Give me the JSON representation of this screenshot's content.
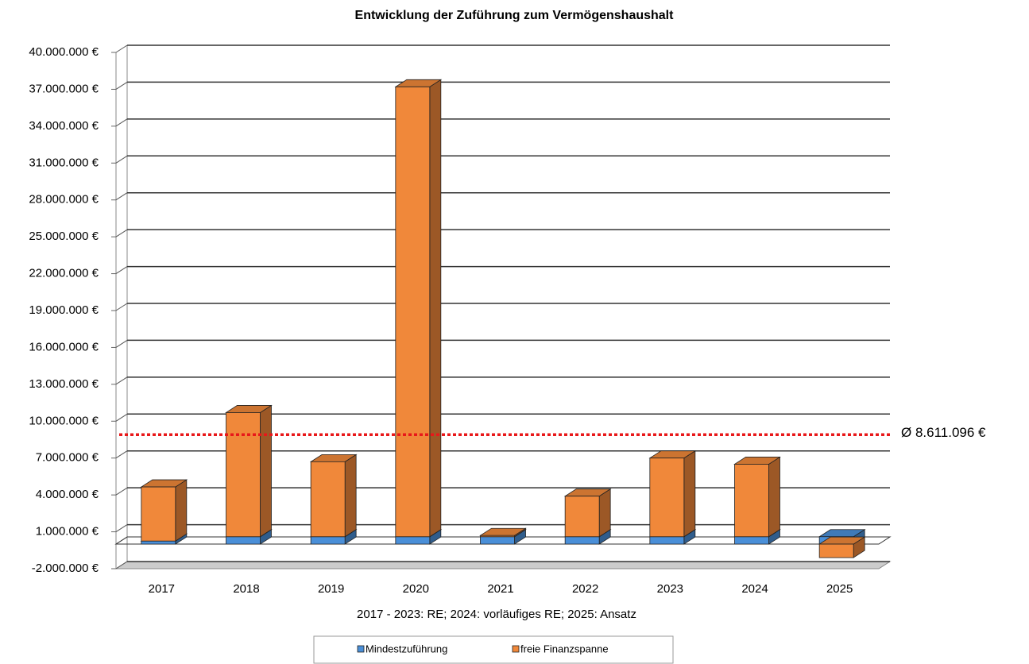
{
  "chart_data": {
    "type": "bar3d-stacked",
    "title": "Entwicklung der Zuführung zum Vermögenshaushalt",
    "x_label": "2017 - 2023: RE; 2024: vorläufiges RE; 2025: Ansatz",
    "categories": [
      "2017",
      "2018",
      "2019",
      "2020",
      "2021",
      "2022",
      "2023",
      "2024",
      "2025"
    ],
    "series": [
      {
        "name": "Mindestzuführung",
        "color": "#4a8fd8",
        "values": [
          250000,
          600000,
          600000,
          600000,
          600000,
          600000,
          600000,
          600000,
          600000
        ]
      },
      {
        "name": "freie Finanzspanne",
        "color": "#f0883a",
        "values": [
          4400000,
          10100000,
          6100000,
          36600000,
          100000,
          3300000,
          6400000,
          5900000,
          -1100000
        ]
      }
    ],
    "average": {
      "value": 8611096,
      "label": "Ø 8.611.096 €",
      "color": "#e8181a"
    },
    "ylim": [
      -2000000,
      40000000
    ],
    "yticks": [
      {
        "value": -2000000,
        "label": "-2.000.000 €"
      },
      {
        "value": 1000000,
        "label": "1.000.000 €"
      },
      {
        "value": 4000000,
        "label": "4.000.000 €"
      },
      {
        "value": 7000000,
        "label": "7.000.000 €"
      },
      {
        "value": 10000000,
        "label": "10.000.000 €"
      },
      {
        "value": 13000000,
        "label": "13.000.000 €"
      },
      {
        "value": 16000000,
        "label": "16.000.000 €"
      },
      {
        "value": 19000000,
        "label": "19.000.000 €"
      },
      {
        "value": 22000000,
        "label": "22.000.000 €"
      },
      {
        "value": 25000000,
        "label": "25.000.000 €"
      },
      {
        "value": 28000000,
        "label": "28.000.000 €"
      },
      {
        "value": 31000000,
        "label": "31.000.000 €"
      },
      {
        "value": 34000000,
        "label": "34.000.000 €"
      },
      {
        "value": 37000000,
        "label": "37.000.000 €"
      },
      {
        "value": 40000000,
        "label": "40.000.000 €"
      }
    ],
    "grid": true,
    "legend": "bottom"
  }
}
